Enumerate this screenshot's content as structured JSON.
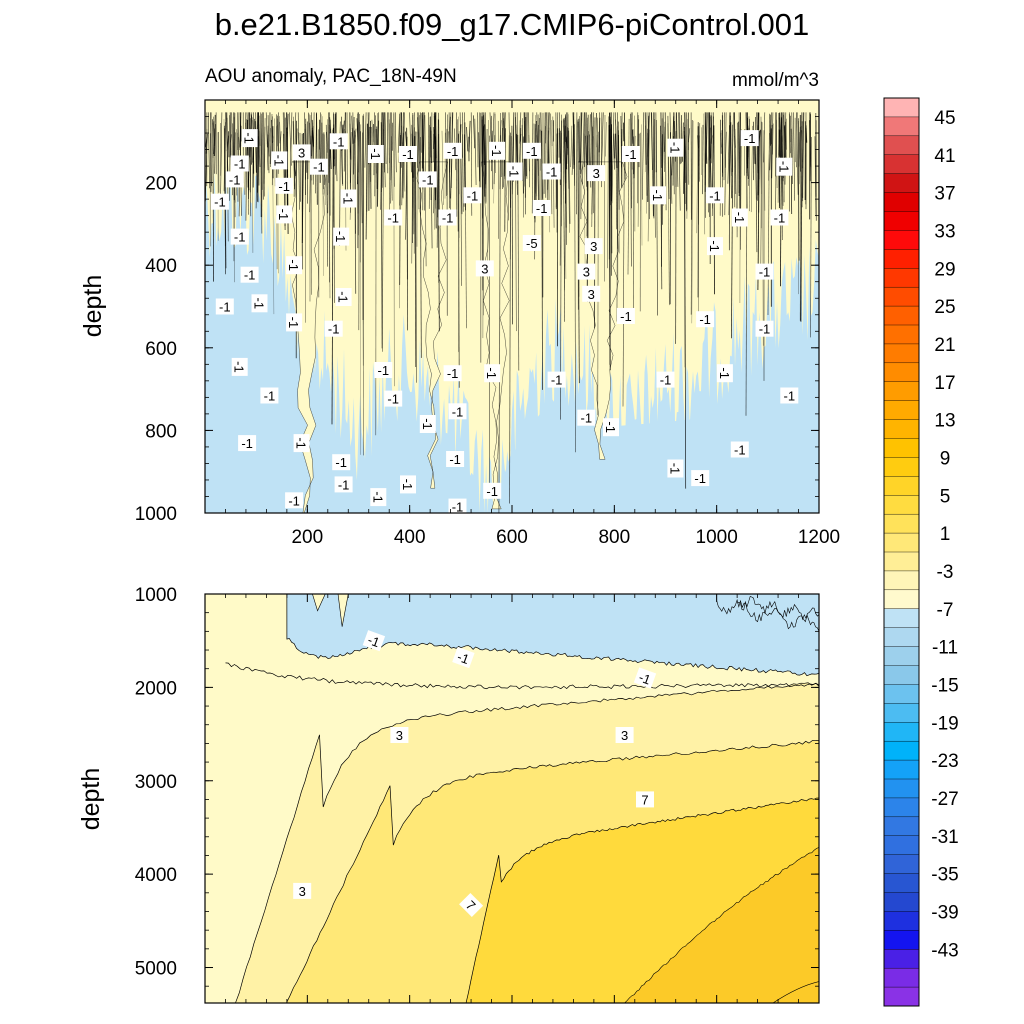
{
  "chart_data": {
    "type": "contour",
    "title": "b.e21.B1850.f09_g17.CMIP6-piControl.001",
    "subtitle_left": "AOU anomaly, PAC_18N-49N",
    "subtitle_right": "mmol/m^3",
    "colors": {
      "above_1": "#fffac8",
      "c1_5": "#fff2a6",
      "c5_9": "#ffe877",
      "c9_13": "#ffda3c",
      "c13_plus": "#fcca28",
      "neg_1_3": "#bfe2f5",
      "line": "#000000"
    },
    "panels": [
      {
        "name": "upper",
        "xlim": [
          0,
          1200
        ],
        "ylim": [
          1000,
          0
        ],
        "ylabel": "depth",
        "xticks": [
          "200",
          "400",
          "600",
          "800",
          "1000",
          "1200"
        ],
        "yticks": [
          "200",
          "400",
          "600",
          "800",
          "1000"
        ],
        "xtick_values": [
          200,
          400,
          600,
          800,
          1000,
          1200
        ],
        "ytick_values": [
          200,
          400,
          600,
          800,
          1000
        ],
        "contour_labels": [
          {
            "text": "-1",
            "x": 90,
            "y": 120
          },
          {
            "text": "-1",
            "x": 270,
            "y": 130
          },
          {
            "text": "3",
            "x": 195,
            "y": 165
          },
          {
            "text": "-1",
            "x": 345,
            "y": 170
          },
          {
            "text": "-1",
            "x": 410,
            "y": 170
          },
          {
            "text": "-1",
            "x": 500,
            "y": 160
          },
          {
            "text": "-1",
            "x": 590,
            "y": 160
          },
          {
            "text": "-1",
            "x": 660,
            "y": 160
          },
          {
            "text": "-1",
            "x": 860,
            "y": 170
          },
          {
            "text": "-1",
            "x": 950,
            "y": 150
          },
          {
            "text": "-1",
            "x": 1100,
            "y": 120
          },
          {
            "text": "-1",
            "x": 70,
            "y": 200
          },
          {
            "text": "-1",
            "x": 150,
            "y": 190
          },
          {
            "text": "-1",
            "x": 230,
            "y": 210
          },
          {
            "text": "3",
            "x": 790,
            "y": 230
          },
          {
            "text": "-1",
            "x": 625,
            "y": 225
          },
          {
            "text": "-1",
            "x": 700,
            "y": 225
          },
          {
            "text": "-1",
            "x": 450,
            "y": 250
          },
          {
            "text": "-1",
            "x": 1170,
            "y": 210
          },
          {
            "text": "-1",
            "x": 60,
            "y": 250
          },
          {
            "text": "-1",
            "x": 160,
            "y": 270
          },
          {
            "text": "-1",
            "x": 290,
            "y": 310
          },
          {
            "text": "-1",
            "x": 540,
            "y": 300
          },
          {
            "text": "-1",
            "x": 680,
            "y": 340
          },
          {
            "text": "-1",
            "x": 915,
            "y": 300
          },
          {
            "text": "-1",
            "x": 1030,
            "y": 300
          },
          {
            "text": "-1",
            "x": 30,
            "y": 320
          },
          {
            "text": "-1",
            "x": 160,
            "y": 360
          },
          {
            "text": "-1",
            "x": 380,
            "y": 370
          },
          {
            "text": "-1",
            "x": 490,
            "y": 370
          },
          {
            "text": "-1",
            "x": 1080,
            "y": 370
          },
          {
            "text": "-1",
            "x": 1160,
            "y": 370
          },
          {
            "text": "-1",
            "x": 70,
            "y": 430
          },
          {
            "text": "-1",
            "x": 275,
            "y": 430
          },
          {
            "text": "-5",
            "x": 660,
            "y": 450
          },
          {
            "text": "3",
            "x": 785,
            "y": 460
          },
          {
            "text": "-1",
            "x": 1030,
            "y": 460
          },
          {
            "text": "3",
            "x": 565,
            "y": 530
          },
          {
            "text": "-1",
            "x": 90,
            "y": 550
          },
          {
            "text": "-1",
            "x": 180,
            "y": 520
          },
          {
            "text": "3",
            "x": 770,
            "y": 540
          },
          {
            "text": "-1",
            "x": 1130,
            "y": 540
          },
          {
            "text": "-1",
            "x": 280,
            "y": 620
          },
          {
            "text": "3",
            "x": 780,
            "y": 610
          },
          {
            "text": "-1",
            "x": 40,
            "y": 650
          },
          {
            "text": "-1",
            "x": 110,
            "y": 640
          },
          {
            "text": "-1",
            "x": 850,
            "y": 680
          },
          {
            "text": "-1",
            "x": 1010,
            "y": 690
          },
          {
            "text": "-1",
            "x": 180,
            "y": 700
          },
          {
            "text": "-1",
            "x": 260,
            "y": 720
          },
          {
            "text": "-1",
            "x": 1130,
            "y": 720
          },
          {
            "text": "-1",
            "x": 70,
            "y": 840
          },
          {
            "text": "-1",
            "x": 360,
            "y": 850
          },
          {
            "text": "-1",
            "x": 500,
            "y": 860
          },
          {
            "text": "-1",
            "x": 580,
            "y": 860
          },
          {
            "text": "-1",
            "x": 710,
            "y": 880
          },
          {
            "text": "-1",
            "x": 930,
            "y": 880
          },
          {
            "text": "-1",
            "x": 1050,
            "y": 860
          },
          {
            "text": "-1",
            "x": 130,
            "y": 930
          },
          {
            "text": "-1",
            "x": 380,
            "y": 940
          },
          {
            "text": "-1",
            "x": 450,
            "y": 1020
          },
          {
            "text": "-1",
            "x": 510,
            "y": 980
          },
          {
            "text": "-1",
            "x": 770,
            "y": 1000
          },
          {
            "text": "-1",
            "x": 820,
            "y": 1030
          },
          {
            "text": "-1",
            "x": 1180,
            "y": 930
          },
          {
            "text": "-1",
            "x": 85,
            "y": 1080
          },
          {
            "text": "-1",
            "x": 195,
            "y": 1080
          },
          {
            "text": "-1",
            "x": 275,
            "y": 1140
          },
          {
            "text": "-1",
            "x": 505,
            "y": 1130
          },
          {
            "text": "-1",
            "x": 410,
            "y": 1210
          },
          {
            "text": "-1",
            "x": 280,
            "y": 1210
          },
          {
            "text": "-1",
            "x": 180,
            "y": 1260
          },
          {
            "text": "-1",
            "x": 350,
            "y": 1250
          },
          {
            "text": "-1",
            "x": 510,
            "y": 1280
          },
          {
            "text": "-1",
            "x": 580,
            "y": 1230
          },
          {
            "text": "-1",
            "x": 950,
            "y": 1160
          },
          {
            "text": "-1",
            "x": 1000,
            "y": 1190
          },
          {
            "text": "-1",
            "x": 1080,
            "y": 1100
          }
        ]
      },
      {
        "name": "lower",
        "xlim": [
          0,
          1200
        ],
        "ylim": [
          5380,
          1000
        ],
        "ylabel": "depth",
        "yticks": [
          "1000",
          "2000",
          "3000",
          "4000",
          "5000"
        ],
        "ytick_values": [
          1000,
          2000,
          3000,
          4000,
          5000
        ],
        "contour_labels": [
          {
            "text": "-1",
            "x": 330,
            "y": 1500
          },
          {
            "text": "-1",
            "x": 505,
            "y": 1680
          },
          {
            "text": "-1",
            "x": 860,
            "y": 1900
          },
          {
            "text": "3",
            "x": 380,
            "y": 2510
          },
          {
            "text": "3",
            "x": 820,
            "y": 2510
          },
          {
            "text": "7",
            "x": 860,
            "y": 3200
          },
          {
            "text": "3",
            "x": 190,
            "y": 4180
          },
          {
            "text": "7",
            "x": 520,
            "y": 4330
          }
        ]
      }
    ],
    "colorbar": {
      "labels": [
        "45",
        "41",
        "37",
        "33",
        "29",
        "25",
        "21",
        "17",
        "13",
        "9",
        "5",
        "1",
        "-3",
        "-7",
        "-11",
        "-15",
        "-19",
        "-23",
        "-27",
        "-31",
        "-35",
        "-39",
        "-43"
      ],
      "colors": [
        "#ffb4b4",
        "#f07878",
        "#e05050",
        "#d83232",
        "#d01414",
        "#e00000",
        "#f00000",
        "#ff0a0a",
        "#ff2000",
        "#ff3800",
        "#ff4c00",
        "#ff6000",
        "#ff7000",
        "#ff7c00",
        "#ff8c00",
        "#ff9c00",
        "#ffaa00",
        "#ffb400",
        "#ffc200",
        "#ffcc10",
        "#ffd428",
        "#ffdc40",
        "#ffe25a",
        "#ffe878",
        "#ffee96",
        "#fff5b8",
        "#fffacd",
        "#bfe2f5",
        "#aed8f0",
        "#9dd0ec",
        "#8ac8ea",
        "#6cc2ef",
        "#4cbcf2",
        "#20b6f6",
        "#00b2fa",
        "#14a2f8",
        "#2292f0",
        "#2c84ea",
        "#3278e2",
        "#3070e0",
        "#3064d8",
        "#2856d2",
        "#2448d0",
        "#1e30e0",
        "#1414f0",
        "#4a20e6",
        "#7a2ce6",
        "#8a32e6"
      ],
      "bounds": [
        47,
        45,
        43,
        41,
        39,
        37,
        35,
        33,
        31,
        29,
        27,
        25,
        23,
        21,
        19,
        17,
        15,
        13,
        11,
        9,
        7,
        5,
        3,
        1,
        -1,
        -3,
        -5,
        -7,
        -9,
        -11,
        -13,
        -15,
        -17,
        -19,
        -21,
        -23,
        -25,
        -27,
        -29,
        -31,
        -33,
        -35,
        -37,
        -39,
        -41,
        -43,
        -45,
        -47,
        -49
      ]
    }
  }
}
